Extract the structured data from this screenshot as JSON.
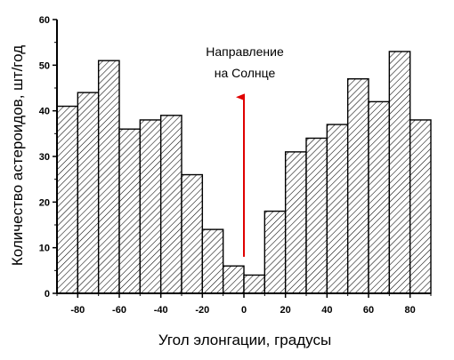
{
  "chart_data": {
    "type": "bar",
    "xlabel": "Угол элонгации, градусы",
    "ylabel": "Количество астероидов,   шт/год",
    "x_bin_centers": [
      -85,
      -75,
      -65,
      -55,
      -45,
      -35,
      -25,
      -15,
      -5,
      5,
      15,
      25,
      35,
      45,
      55,
      65,
      75,
      85
    ],
    "bin_width": 10,
    "values": [
      41,
      44,
      51,
      36,
      38,
      39,
      26,
      14,
      6,
      4,
      18,
      31,
      34,
      37,
      47,
      42,
      53,
      38
    ],
    "xlim": [
      -90,
      90
    ],
    "ylim": [
      0,
      60
    ],
    "x_ticks": [
      -80,
      -60,
      -40,
      -20,
      0,
      20,
      40,
      60,
      80
    ],
    "x_tick_labels": [
      "-80",
      "-60",
      "-40",
      "-20",
      "0",
      "20",
      "40",
      "60",
      "80"
    ],
    "y_ticks": [
      0,
      10,
      20,
      30,
      40,
      50,
      60
    ],
    "y_tick_labels": [
      "0",
      "10",
      "20",
      "30",
      "40",
      "50",
      "60"
    ],
    "grid": false,
    "bar_fill": "hatched",
    "annotation": {
      "line1": "Направление",
      "line2": "на Солнце",
      "arrow_x": 0,
      "arrow_from_y": 8,
      "arrow_to_y": 43,
      "arrow_color": "#e00000"
    }
  }
}
